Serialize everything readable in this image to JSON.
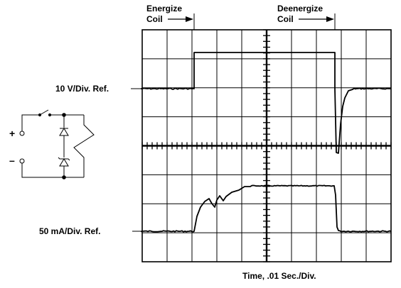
{
  "annotations": {
    "energize_line1": "Energize",
    "energize_line2": "Coil",
    "deenergize_line1": "Deenergize",
    "deenergize_line2": "Coil"
  },
  "scales": {
    "voltage_ref": "10 V/Div.  Ref.",
    "current_ref": "50 mA/Div.  Ref.",
    "time": "Time, .01 Sec./Div."
  },
  "circuit": {
    "plus": "+",
    "minus": "–"
  },
  "colors": {
    "trace": "#000000",
    "grid": "#000000",
    "background": "#ffffff"
  }
}
